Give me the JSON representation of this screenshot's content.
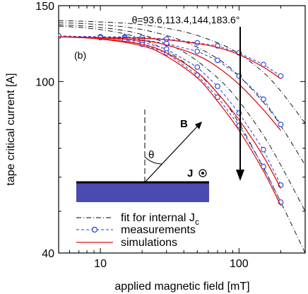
{
  "chart_data": {
    "type": "line",
    "title": "",
    "xlabel": "applied magnetic field [mT]",
    "ylabel": "tape critical current [A]",
    "xscale": "log",
    "yscale": "log",
    "xlim": [
      5,
      300
    ],
    "ylim": [
      40,
      150
    ],
    "xticks": [
      10,
      100
    ],
    "yticks": [
      40,
      100,
      150
    ],
    "panel_label": "(b)",
    "angle_annotation": "θ=93.6,113.4,144,183.6°",
    "legend": {
      "position": "bottom-right",
      "entries": [
        {
          "label": "fit for internal J",
          "subscript": "c",
          "style": "dash-dot",
          "color": "#000000"
        },
        {
          "label": "measurements",
          "style": "dashed-circle",
          "color": "#1f3fd6"
        },
        {
          "label": "simulations",
          "style": "solid",
          "color": "#e01010"
        }
      ]
    },
    "inset": {
      "field_label": "B",
      "current_label": "J",
      "angle_label": "θ",
      "tape_color": "#4a4ab0"
    },
    "series": [
      {
        "kind": "fit",
        "x": [
          5,
          10,
          20,
          40,
          70,
          100,
          150,
          200,
          300
        ],
        "y": [
          138.5,
          137.5,
          135.5,
          130.5,
          123.0,
          116.0,
          105.0,
          95.0,
          80.0
        ]
      },
      {
        "kind": "fit",
        "x": [
          5,
          10,
          20,
          40,
          70,
          100,
          150,
          200,
          300
        ],
        "y": [
          137.0,
          135.5,
          132.0,
          124.0,
          113.0,
          103.0,
          89.5,
          79.0,
          64.0
        ]
      },
      {
        "kind": "fit",
        "x": [
          5,
          10,
          20,
          40,
          70,
          100,
          150,
          200,
          300
        ],
        "y": [
          135.5,
          133.5,
          128.5,
          117.0,
          102.0,
          90.0,
          75.0,
          64.0,
          50.0
        ]
      },
      {
        "kind": "fit",
        "x": [
          5,
          10,
          20,
          40,
          70,
          100,
          150,
          200,
          300
        ],
        "y": [
          134.5,
          132.0,
          125.5,
          111.0,
          94.0,
          80.0,
          63.0,
          52.5,
          40.0
        ]
      },
      {
        "kind": "measurement",
        "x": [
          5,
          10,
          15,
          20,
          30,
          50,
          70,
          100,
          150,
          200
        ],
        "y": [
          127.5,
          127.0,
          127.0,
          126.5,
          125.5,
          123.0,
          121.0,
          116.5,
          109.5,
          103.0
        ]
      },
      {
        "kind": "measurement",
        "x": [
          5,
          10,
          15,
          20,
          30,
          50,
          70,
          100,
          150,
          200
        ],
        "y": [
          127.5,
          127.0,
          126.5,
          125.0,
          122.5,
          117.5,
          112.0,
          103.0,
          91.0,
          79.5
        ]
      },
      {
        "kind": "measurement",
        "x": [
          5,
          10,
          15,
          20,
          30,
          50,
          70,
          100,
          150,
          200
        ],
        "y": [
          127.5,
          126.5,
          125.5,
          123.5,
          119.0,
          108.0,
          97.5,
          84.5,
          69.5,
          57.5
        ]
      },
      {
        "kind": "measurement",
        "x": [
          5,
          10,
          15,
          20,
          30,
          50,
          70,
          100,
          150,
          200
        ],
        "y": [
          127.5,
          126.5,
          125.0,
          122.0,
          116.5,
          103.5,
          92.0,
          79.0,
          63.5,
          52.5
        ]
      },
      {
        "kind": "simulation",
        "x": [
          5,
          10,
          20,
          30,
          50,
          70,
          100,
          150,
          200
        ],
        "y": [
          127.0,
          126.5,
          126.0,
          125.0,
          122.5,
          120.0,
          115.5,
          108.0,
          101.5
        ]
      },
      {
        "kind": "simulation",
        "x": [
          5,
          10,
          20,
          30,
          50,
          70,
          100,
          150,
          200
        ],
        "y": [
          127.0,
          126.3,
          124.5,
          121.5,
          115.0,
          108.0,
          98.5,
          86.0,
          77.0
        ]
      },
      {
        "kind": "simulation",
        "x": [
          5,
          10,
          20,
          30,
          50,
          70,
          100,
          150,
          200
        ],
        "y": [
          127.0,
          125.8,
          122.0,
          116.5,
          105.0,
          94.0,
          81.5,
          67.0,
          56.5
        ]
      },
      {
        "kind": "simulation",
        "x": [
          5,
          10,
          20,
          30,
          50,
          70,
          100,
          150,
          200
        ],
        "y": [
          127.0,
          125.5,
          121.0,
          114.5,
          102.0,
          90.0,
          77.0,
          62.0,
          51.5
        ]
      }
    ],
    "grid": false
  }
}
